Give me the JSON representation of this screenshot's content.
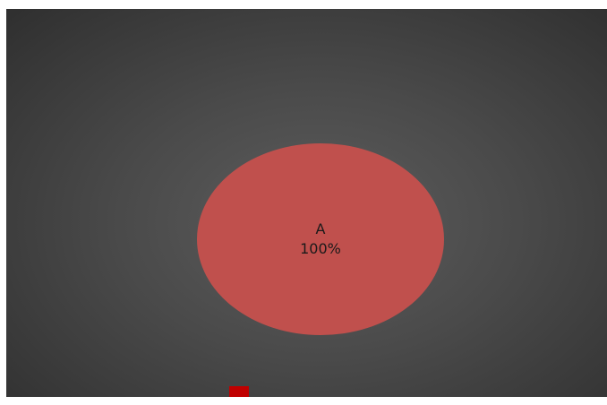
{
  "chart_data": {
    "type": "pie",
    "title": "",
    "slices": [
      {
        "label": "A",
        "value": 100,
        "percent_label": "100%",
        "color": "#c0504d"
      }
    ],
    "legend": {
      "placement": "bottom",
      "entries": [
        {
          "label": "",
          "color": "#c00000"
        }
      ]
    }
  },
  "colors": {
    "background_center": "#5d5d5d",
    "background_edge": "#2f2f2f"
  }
}
